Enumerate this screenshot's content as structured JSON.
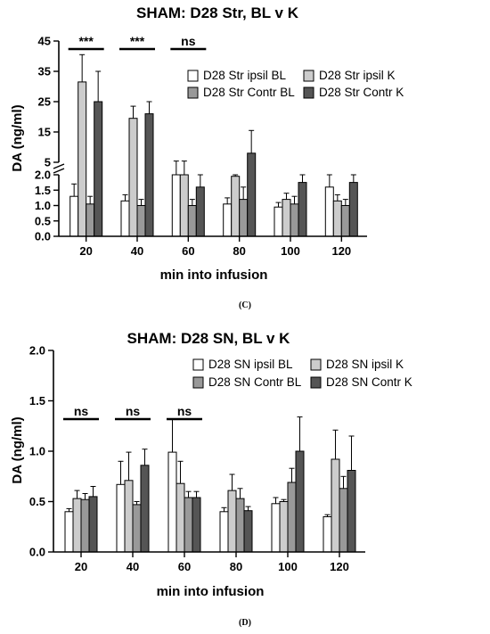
{
  "chart_data": [
    {
      "type": "bar",
      "panel_label": "(C)",
      "title": "SHAM: D28 Str, BL v K",
      "xlabel": "min into infusion",
      "ylabel": "DA (ng/ml)",
      "categories": [
        "20",
        "40",
        "60",
        "80",
        "100",
        "120"
      ],
      "y_axis_break": {
        "lower_range": [
          0,
          2.0
        ],
        "upper_range": [
          5,
          45
        ],
        "lower_ticks": [
          "0.0",
          "0.5",
          "1.0",
          "1.5",
          "2.0"
        ],
        "upper_ticks": [
          "5",
          "15",
          "25",
          "35",
          "45"
        ]
      },
      "series": [
        {
          "name": "D28 Str ipsil BL",
          "color": "#ffffff",
          "values": [
            1.3,
            1.15,
            2.4,
            1.05,
            0.95,
            1.6
          ],
          "errors": [
            0.4,
            0.2,
            3.0,
            0.2,
            0.15,
            0.45
          ]
        },
        {
          "name": "D28 Str ipsil K",
          "color": "#cccccc",
          "values": [
            31.5,
            19.5,
            2.4,
            1.95,
            1.2,
            1.15
          ],
          "errors": [
            9.0,
            4.0,
            3.0,
            0.3,
            0.2,
            0.2
          ]
        },
        {
          "name": "D28 Str Contr BL",
          "color": "#999999",
          "values": [
            1.05,
            1.0,
            1.0,
            1.2,
            1.05,
            1.0
          ],
          "errors": [
            0.25,
            0.2,
            0.2,
            0.4,
            0.25,
            0.2
          ]
        },
        {
          "name": "D28 Str Contr K",
          "color": "#555555",
          "values": [
            25.0,
            21.0,
            1.6,
            8.0,
            1.75,
            1.75
          ],
          "errors": [
            10.0,
            4.0,
            0.4,
            7.5,
            0.8,
            0.5
          ]
        }
      ],
      "significance": [
        {
          "category": "20",
          "label": "***"
        },
        {
          "category": "40",
          "label": "***"
        },
        {
          "category": "60",
          "label": "ns"
        }
      ],
      "legend_placement": "top-right",
      "grid": false
    },
    {
      "type": "bar",
      "panel_label": "(D)",
      "title": "SHAM: D28 SN, BL v K",
      "xlabel": "min into infusion",
      "ylabel": "DA (ng/ml)",
      "categories": [
        "20",
        "40",
        "60",
        "80",
        "100",
        "120"
      ],
      "ylim": [
        0,
        2.0
      ],
      "y_ticks": [
        "0.0",
        "0.5",
        "1.0",
        "1.5",
        "2.0"
      ],
      "series": [
        {
          "name": "D28 SN ipsil BL",
          "color": "#ffffff",
          "values": [
            0.4,
            0.67,
            0.99,
            0.4,
            0.48,
            0.35
          ],
          "errors": [
            0.03,
            0.23,
            0.33,
            0.04,
            0.06,
            0.02
          ]
        },
        {
          "name": "D28 SN ipsil K",
          "color": "#cccccc",
          "values": [
            0.53,
            0.71,
            0.68,
            0.61,
            0.5,
            0.92
          ],
          "errors": [
            0.08,
            0.28,
            0.22,
            0.16,
            0.02,
            0.29
          ]
        },
        {
          "name": "D28 SN Contr BL",
          "color": "#999999",
          "values": [
            0.52,
            0.47,
            0.54,
            0.53,
            0.69,
            0.63
          ],
          "errors": [
            0.06,
            0.03,
            0.06,
            0.1,
            0.14,
            0.12
          ]
        },
        {
          "name": "D28 SN Contr K",
          "color": "#555555",
          "values": [
            0.55,
            0.86,
            0.54,
            0.41,
            1.0,
            0.81
          ],
          "errors": [
            0.1,
            0.16,
            0.06,
            0.04,
            0.34,
            0.34
          ]
        }
      ],
      "significance": [
        {
          "category": "20",
          "label": "ns"
        },
        {
          "category": "40",
          "label": "ns"
        },
        {
          "category": "60",
          "label": "ns"
        }
      ],
      "legend_placement": "top-right",
      "grid": false
    }
  ]
}
